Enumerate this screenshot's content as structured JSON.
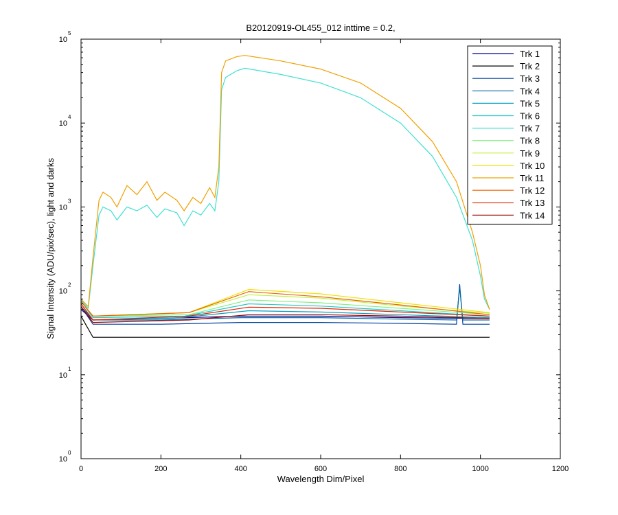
{
  "chart_data": {
    "type": "line",
    "title": "B20120919-OL455_012 inttime = 0.2,",
    "xlabel": "Wavelength Dim/Pixel",
    "ylabel": "Signal Intensity (ADU/pix/sec), light and darks",
    "xlim": [
      0,
      1200
    ],
    "ylim": [
      1,
      100000
    ],
    "yscale": "log",
    "grid": false,
    "legend_position": "top-right",
    "x_ticks": [
      "0",
      "200",
      "400",
      "600",
      "800",
      "1000",
      "1200"
    ],
    "y_tick_base": "10",
    "y_tick_exponents": [
      "0",
      "1",
      "2",
      "3",
      "4",
      "5"
    ],
    "series": [
      {
        "name": "Trk 1",
        "color": "#00008f",
        "points": [
          [
            0,
            60
          ],
          [
            30,
            45
          ],
          [
            200,
            47
          ],
          [
            400,
            50
          ],
          [
            600,
            50
          ],
          [
            800,
            48
          ],
          [
            1000,
            47
          ],
          [
            1023,
            47
          ]
        ]
      },
      {
        "name": "Trk 2",
        "color": "#000000",
        "points": [
          [
            0,
            50
          ],
          [
            30,
            28
          ],
          [
            200,
            28
          ],
          [
            400,
            28
          ],
          [
            600,
            28
          ],
          [
            800,
            28
          ],
          [
            1000,
            28
          ],
          [
            1023,
            28
          ]
        ]
      },
      {
        "name": "Trk 3",
        "color": "#0040a0",
        "points": [
          [
            0,
            65
          ],
          [
            30,
            40
          ],
          [
            200,
            40
          ],
          [
            400,
            42
          ],
          [
            600,
            42
          ],
          [
            800,
            41
          ],
          [
            940,
            40
          ],
          [
            948,
            120
          ],
          [
            956,
            40
          ],
          [
            1023,
            40
          ]
        ]
      },
      {
        "name": "Trk 4",
        "color": "#006aa0",
        "points": [
          [
            0,
            65
          ],
          [
            30,
            45
          ],
          [
            200,
            45
          ],
          [
            400,
            48
          ],
          [
            600,
            48
          ],
          [
            800,
            46
          ],
          [
            940,
            45
          ],
          [
            948,
            110
          ],
          [
            956,
            45
          ],
          [
            1023,
            45
          ]
        ]
      },
      {
        "name": "Trk 5",
        "color": "#00a0c0",
        "points": [
          [
            0,
            70
          ],
          [
            30,
            45
          ],
          [
            250,
            48
          ],
          [
            420,
            58
          ],
          [
            600,
            56
          ],
          [
            800,
            52
          ],
          [
            1023,
            48
          ]
        ]
      },
      {
        "name": "Trk 6",
        "color": "#20c8c8",
        "points": [
          [
            0,
            75
          ],
          [
            30,
            48
          ],
          [
            260,
            50
          ],
          [
            420,
            70
          ],
          [
            600,
            66
          ],
          [
            800,
            58
          ],
          [
            1023,
            50
          ]
        ]
      },
      {
        "name": "Trk 7",
        "color": "#40e0d0",
        "points": [
          [
            0,
            78
          ],
          [
            18,
            62
          ],
          [
            30,
            200
          ],
          [
            45,
            800
          ],
          [
            55,
            1000
          ],
          [
            75,
            900
          ],
          [
            90,
            700
          ],
          [
            115,
            1000
          ],
          [
            140,
            900
          ],
          [
            165,
            1050
          ],
          [
            190,
            750
          ],
          [
            210,
            950
          ],
          [
            240,
            850
          ],
          [
            258,
            600
          ],
          [
            280,
            900
          ],
          [
            300,
            800
          ],
          [
            322,
            1100
          ],
          [
            335,
            900
          ],
          [
            345,
            2000
          ],
          [
            352,
            25000
          ],
          [
            362,
            35000
          ],
          [
            390,
            42000
          ],
          [
            410,
            45000
          ],
          [
            500,
            38000
          ],
          [
            600,
            30000
          ],
          [
            700,
            20000
          ],
          [
            800,
            10000
          ],
          [
            880,
            4000
          ],
          [
            940,
            1300
          ],
          [
            980,
            400
          ],
          [
            1000,
            150
          ],
          [
            1010,
            80
          ],
          [
            1023,
            60
          ]
        ]
      },
      {
        "name": "Trk 8",
        "color": "#80f080",
        "points": [
          [
            0,
            75
          ],
          [
            30,
            50
          ],
          [
            270,
            52
          ],
          [
            420,
            78
          ],
          [
            600,
            72
          ],
          [
            800,
            62
          ],
          [
            1023,
            52
          ]
        ]
      },
      {
        "name": "Trk 9",
        "color": "#c0f040",
        "points": [
          [
            0,
            75
          ],
          [
            30,
            50
          ],
          [
            270,
            55
          ],
          [
            420,
            90
          ],
          [
            600,
            82
          ],
          [
            800,
            66
          ],
          [
            1023,
            54
          ]
        ]
      },
      {
        "name": "Trk 10",
        "color": "#f0e000",
        "points": [
          [
            0,
            75
          ],
          [
            30,
            50
          ],
          [
            270,
            55
          ],
          [
            420,
            104
          ],
          [
            600,
            92
          ],
          [
            800,
            72
          ],
          [
            1023,
            55
          ]
        ]
      },
      {
        "name": "Trk 11",
        "color": "#f0a000",
        "points": [
          [
            0,
            80
          ],
          [
            18,
            65
          ],
          [
            30,
            250
          ],
          [
            45,
            1200
          ],
          [
            55,
            1500
          ],
          [
            75,
            1300
          ],
          [
            90,
            1000
          ],
          [
            115,
            1800
          ],
          [
            140,
            1400
          ],
          [
            165,
            2000
          ],
          [
            190,
            1200
          ],
          [
            210,
            1500
          ],
          [
            240,
            1200
          ],
          [
            258,
            900
          ],
          [
            280,
            1300
          ],
          [
            300,
            1100
          ],
          [
            322,
            1700
          ],
          [
            335,
            1300
          ],
          [
            345,
            3000
          ],
          [
            352,
            40000
          ],
          [
            362,
            55000
          ],
          [
            390,
            62000
          ],
          [
            410,
            64000
          ],
          [
            500,
            55000
          ],
          [
            600,
            44000
          ],
          [
            700,
            30000
          ],
          [
            800,
            15000
          ],
          [
            880,
            6000
          ],
          [
            940,
            2000
          ],
          [
            980,
            500
          ],
          [
            1000,
            200
          ],
          [
            1010,
            90
          ],
          [
            1023,
            60
          ]
        ]
      },
      {
        "name": "Trk 12",
        "color": "#f06000",
        "points": [
          [
            0,
            75
          ],
          [
            30,
            50
          ],
          [
            270,
            55
          ],
          [
            420,
            98
          ],
          [
            600,
            85
          ],
          [
            800,
            68
          ],
          [
            1023,
            52
          ]
        ]
      },
      {
        "name": "Trk 13",
        "color": "#e02000",
        "points": [
          [
            0,
            70
          ],
          [
            30,
            45
          ],
          [
            270,
            50
          ],
          [
            420,
            64
          ],
          [
            600,
            62
          ],
          [
            800,
            56
          ],
          [
            1023,
            50
          ]
        ]
      },
      {
        "name": "Trk 14",
        "color": "#a00000",
        "points": [
          [
            0,
            65
          ],
          [
            30,
            42
          ],
          [
            270,
            45
          ],
          [
            420,
            52
          ],
          [
            600,
            52
          ],
          [
            800,
            50
          ],
          [
            1023,
            47
          ]
        ]
      }
    ]
  }
}
